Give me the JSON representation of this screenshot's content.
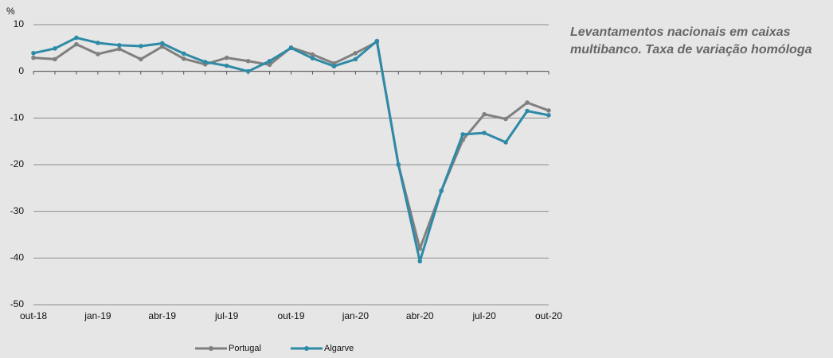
{
  "chart_data": {
    "type": "line",
    "title": "Levantamentos nacionais em caixas multibanco. Taxa de variação homóloga",
    "y_label": "%",
    "categories": [
      "out-18",
      null,
      null,
      "jan-19",
      null,
      null,
      "abr-19",
      null,
      null,
      "jul-19",
      null,
      null,
      "out-19",
      null,
      null,
      "jan-20",
      null,
      null,
      "abr-20",
      null,
      null,
      "jul-20",
      null,
      null,
      "out-20"
    ],
    "series": [
      {
        "name": "Portugal",
        "color": "#808080",
        "values": [
          2.9,
          2.6,
          5.8,
          3.7,
          4.8,
          2.6,
          5.3,
          2.7,
          1.5,
          2.9,
          2.2,
          1.4,
          5.1,
          3.6,
          1.7,
          3.9,
          6.3,
          -20,
          -38,
          -25.6,
          -14.7,
          -9.2,
          -10.2,
          -6.7,
          -8.4
        ]
      },
      {
        "name": "Algarve",
        "color": "#2e8aa6",
        "values": [
          3.9,
          4.9,
          7.2,
          6.1,
          5.6,
          5.4,
          6.0,
          3.8,
          2.0,
          1.2,
          0,
          2.2,
          5.0,
          2.8,
          1.1,
          2.6,
          6.5,
          -20,
          -40.7,
          -25.6,
          -13.5,
          -13.2,
          -15.2,
          -8.5,
          -9.4
        ]
      }
    ],
    "ylim": [
      -50,
      10
    ],
    "yticks": [
      -50,
      -40,
      -30,
      -20,
      -10,
      0,
      10
    ],
    "grid": true
  }
}
